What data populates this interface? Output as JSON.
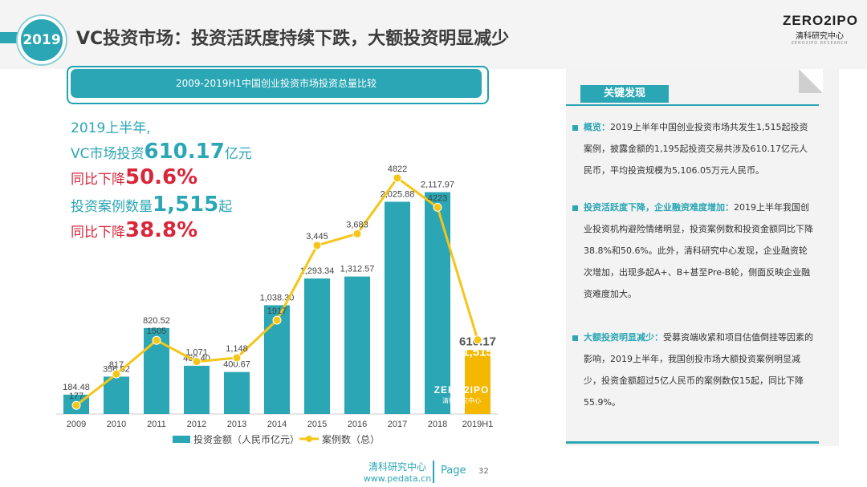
{
  "header": {
    "year_badge": "2019",
    "title": "VC投资市场：投资活跃度持续下跌，大额投资明显减少",
    "logo_main": "ZERO2IPO",
    "logo_sub": "清科研究中心",
    "logo_tiny": "ZERO2IPO RESEARCH"
  },
  "kpis": {
    "line1": "2019上半年,",
    "line2_prefix": "VC市场投资",
    "line2_value": "610.17",
    "line2_suffix": "亿元",
    "line3_prefix": "同比下降",
    "line3_value": "50.6%",
    "line4_prefix": "投资案例数量",
    "line4_value": "1,515",
    "line4_suffix": "起",
    "line5_prefix": "同比下降",
    "line5_value": "38.8%"
  },
  "chart_data": {
    "type": "bar",
    "title": "2009-2019H1中国创业投资市场投资总量比较",
    "categories": [
      "2009",
      "2010",
      "2011",
      "2012",
      "2013",
      "2014",
      "2015",
      "2016",
      "2017",
      "2018",
      "2019H1"
    ],
    "series": [
      {
        "name": "投资金额（人民币亿元）",
        "kind": "bar",
        "values": [
          184.48,
          356.62,
          820.52,
          460.4,
          400.67,
          1038.3,
          1293.34,
          1312.57,
          2025.88,
          2117.97,
          610.17
        ],
        "labels": [
          "184.48",
          "356.62",
          "820.52",
          "460.40",
          "400.67",
          "1,038.30",
          "1,293.34",
          "1,312.57",
          "2,025.88",
          "2,117.97",
          "610.17"
        ]
      },
      {
        "name": "案例数（总）",
        "kind": "line",
        "values": [
          177,
          817,
          1505,
          1071,
          1148,
          1917,
          3445,
          3683,
          4822,
          4223,
          1515
        ],
        "labels": [
          "177",
          "817",
          "1505",
          "1,071",
          "1,148",
          "1917",
          "3,445",
          "3,683",
          "4822",
          "4223",
          "1,515"
        ]
      }
    ],
    "colors": {
      "bar": "#2aa6b5",
      "bar_highlight": "#f5b800",
      "line": "#f5c518",
      "marker_fill": "#f5c518"
    },
    "legend": "bottom",
    "grid": false,
    "watermark_main": "ZERO2IPO",
    "watermark_sub": "清科研究中心"
  },
  "panel": {
    "tag": "关键发现",
    "findings": [
      {
        "head": "概览：",
        "text": "2019上半年中国创业投资市场共发生1,515起投资案例，披露金额的1,195起投资交易共涉及610.17亿元人民币，平均投资规模为5,106.05万元人民币。"
      },
      {
        "head": "投资活跃度下降，企业融资难度增加：",
        "text": "2019上半年我国创业投资机构避险情绪明显，投资案例数和投资金额同比下降38.8%和50.6%。此外，清科研究中心发现，企业融资轮次增加，出现多起A+、B+甚至Pre-B轮，侧面反映企业融资难度加大。"
      },
      {
        "head": "大额投资明显减少：",
        "text": "受募资端收紧和项目估值倒挂等因素的影响，2019上半年，我国创投市场大额投资案例明显减少，投资金额超过5亿人民币的案例数仅15起，同比下降55.9%。"
      }
    ]
  },
  "footer": {
    "org": "清科研究中心",
    "url": "www.pedata.cn",
    "page_label": "Page",
    "page_number": "32"
  }
}
